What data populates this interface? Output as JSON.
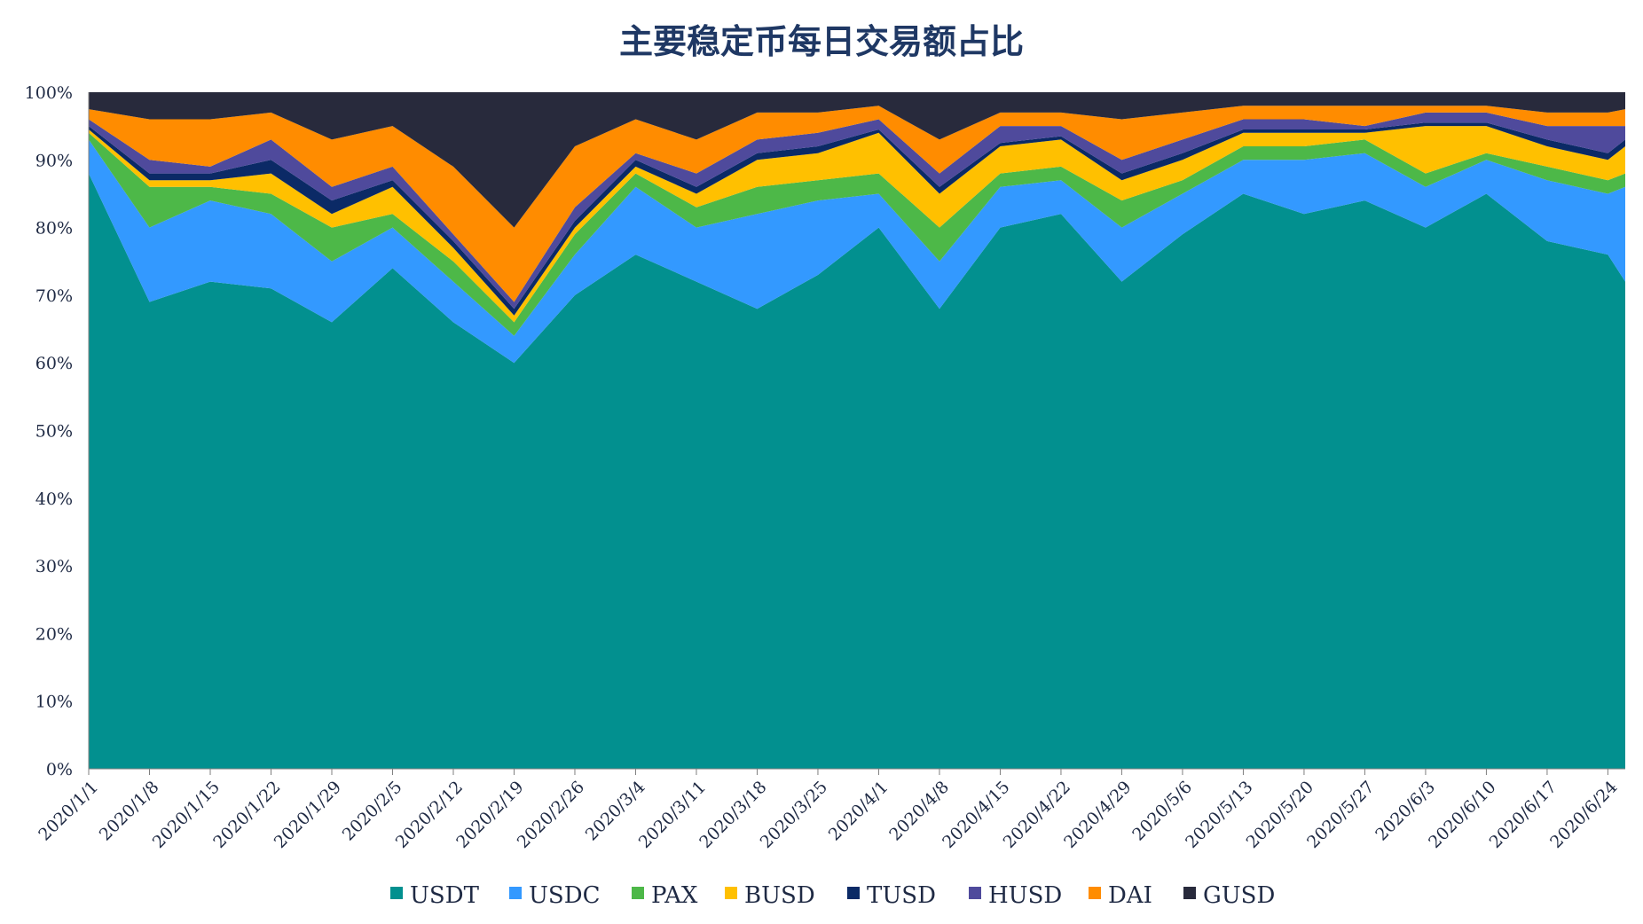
{
  "chart_data": {
    "type": "area",
    "stacked": true,
    "normalized": true,
    "title": "主要稳定币每日交易额占比",
    "xlabel": "",
    "ylabel": "",
    "ylim": [
      0,
      100
    ],
    "grid": false,
    "legend_position": "bottom",
    "y_ticks": [
      "0%",
      "10%",
      "20%",
      "30%",
      "40%",
      "50%",
      "60%",
      "70%",
      "80%",
      "90%",
      "100%"
    ],
    "x_ticks": [
      {
        "label": "2020/1/1",
        "day": 0
      },
      {
        "label": "2020/1/8",
        "day": 7
      },
      {
        "label": "2020/1/15",
        "day": 14
      },
      {
        "label": "2020/1/22",
        "day": 21
      },
      {
        "label": "2020/1/29",
        "day": 28
      },
      {
        "label": "2020/2/5",
        "day": 35
      },
      {
        "label": "2020/2/12",
        "day": 42
      },
      {
        "label": "2020/2/19",
        "day": 49
      },
      {
        "label": "2020/2/26",
        "day": 56
      },
      {
        "label": "2020/3/4",
        "day": 63
      },
      {
        "label": "2020/3/11",
        "day": 70
      },
      {
        "label": "2020/3/18",
        "day": 77
      },
      {
        "label": "2020/3/25",
        "day": 84
      },
      {
        "label": "2020/4/1",
        "day": 91
      },
      {
        "label": "2020/4/8",
        "day": 98
      },
      {
        "label": "2020/4/15",
        "day": 105
      },
      {
        "label": "2020/4/22",
        "day": 112
      },
      {
        "label": "2020/4/29",
        "day": 119
      },
      {
        "label": "2020/5/6",
        "day": 126
      },
      {
        "label": "2020/5/13",
        "day": 133
      },
      {
        "label": "2020/5/20",
        "day": 140
      },
      {
        "label": "2020/5/27",
        "day": 147
      },
      {
        "label": "2020/6/3",
        "day": 154
      },
      {
        "label": "2020/6/10",
        "day": 161
      },
      {
        "label": "2020/6/17",
        "day": 168
      },
      {
        "label": "2020/6/24",
        "day": 175
      }
    ],
    "x_range": [
      0,
      177
    ],
    "anchor_days": [
      0,
      7,
      14,
      21,
      28,
      35,
      42,
      49,
      56,
      63,
      70,
      77,
      84,
      91,
      98,
      105,
      112,
      119,
      126,
      133,
      140,
      147,
      154,
      161,
      168,
      175,
      177
    ],
    "series": [
      {
        "name": "USDT",
        "color": "#02908F",
        "cumulative_top": [
          88,
          69,
          72,
          71,
          66,
          74,
          66,
          60,
          70,
          76,
          72,
          68,
          73,
          80,
          68,
          80,
          82,
          72,
          79,
          85,
          82,
          84,
          80,
          85,
          78,
          76,
          72
        ]
      },
      {
        "name": "USDC",
        "color": "#3399FF",
        "cumulative_top": [
          93,
          80,
          84,
          82,
          75,
          80,
          72,
          64,
          76,
          86,
          80,
          82,
          84,
          85,
          75,
          86,
          87,
          80,
          85,
          90,
          90,
          91,
          86,
          90,
          87,
          85,
          86
        ]
      },
      {
        "name": "PAX",
        "color": "#4DB848",
        "cumulative_top": [
          94,
          86,
          86,
          85,
          80,
          82,
          75,
          66,
          79,
          88,
          83,
          86,
          87,
          88,
          80,
          88,
          89,
          84,
          87,
          92,
          92,
          93,
          88,
          91,
          89,
          87,
          88
        ]
      },
      {
        "name": "BUSD",
        "color": "#FFC000",
        "cumulative_top": [
          94.5,
          87,
          87,
          88,
          82,
          86,
          77,
          67,
          80,
          89,
          85,
          90,
          91,
          94,
          85,
          92,
          93,
          87,
          90,
          94,
          94,
          94,
          95,
          95,
          92,
          90,
          92
        ]
      },
      {
        "name": "TUSD",
        "color": "#0B2A66",
        "cumulative_top": [
          95,
          88,
          88,
          90,
          84,
          87,
          78,
          68,
          81,
          90,
          86,
          91,
          92,
          94.5,
          86,
          92.5,
          93.5,
          88,
          91,
          94.5,
          94.5,
          94.5,
          95.5,
          95.5,
          93,
          91,
          93
        ]
      },
      {
        "name": "HUSD",
        "color": "#4F4A9C",
        "cumulative_top": [
          96,
          90,
          89,
          93,
          86,
          89,
          79,
          69,
          83,
          91,
          88,
          93,
          94,
          96,
          88,
          95,
          95,
          90,
          93,
          96,
          96,
          95,
          97,
          97,
          95,
          95,
          95
        ]
      },
      {
        "name": "DAI",
        "color": "#FF8C00",
        "cumulative_top": [
          97.5,
          96,
          96,
          97,
          93,
          95,
          89,
          80,
          92,
          96,
          93,
          97,
          97,
          98,
          93,
          97,
          97,
          96,
          97,
          98,
          98,
          98,
          98,
          98,
          97,
          97,
          97.5
        ]
      },
      {
        "name": "GUSD",
        "color": "#282A3C",
        "cumulative_top": [
          100,
          100,
          100,
          100,
          100,
          100,
          100,
          100,
          100,
          100,
          100,
          100,
          100,
          100,
          100,
          100,
          100,
          100,
          100,
          100,
          100,
          100,
          100,
          100,
          100,
          100,
          100
        ]
      }
    ]
  }
}
